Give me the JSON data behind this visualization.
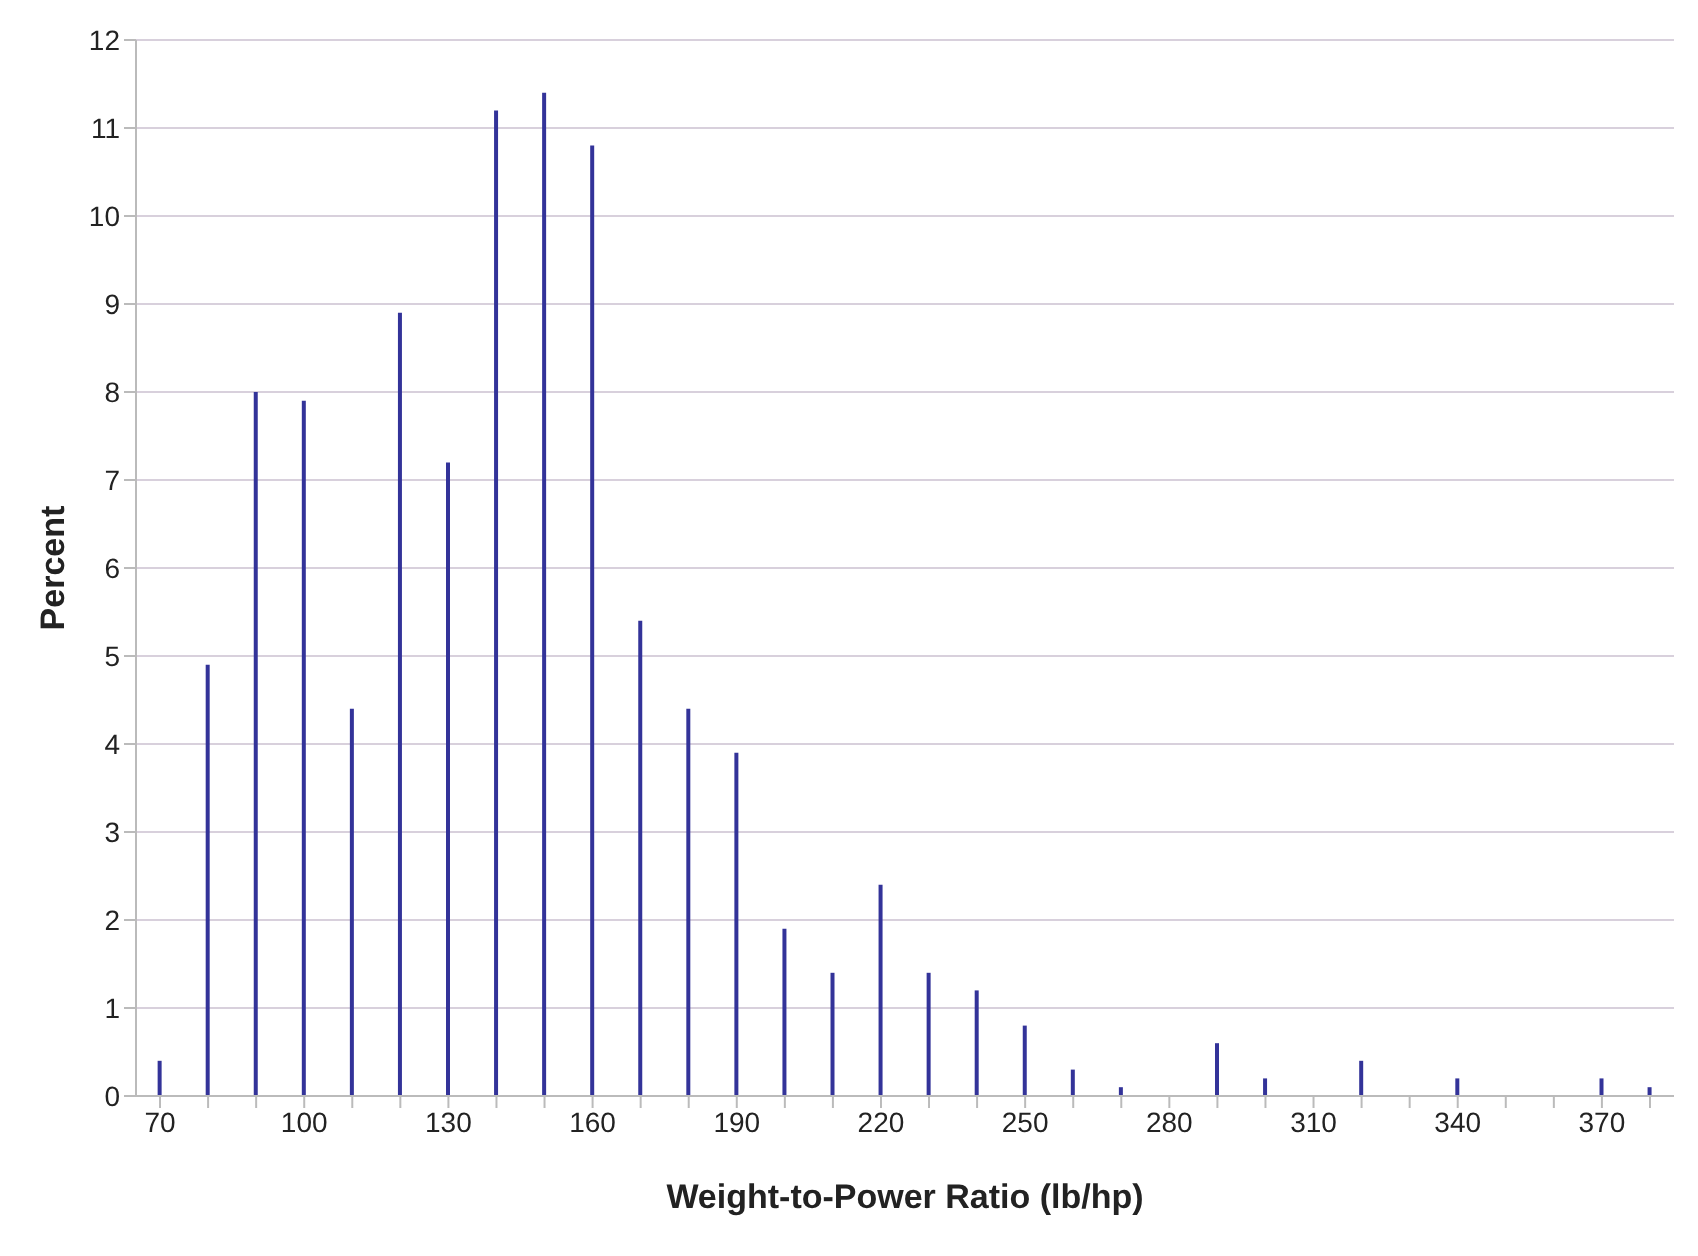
{
  "chart_data": {
    "type": "bar",
    "xlabel": "Weight-to-Power Ratio (lb/hp)",
    "ylabel": "Percent",
    "categories": [
      "70",
      null,
      null,
      "100",
      null,
      null,
      "130",
      null,
      null,
      "160",
      null,
      null,
      "190",
      null,
      null,
      "220",
      null,
      null,
      "250",
      null,
      null,
      "280",
      null,
      null,
      "310",
      null,
      null,
      "340",
      null,
      null,
      "370",
      null
    ],
    "values": [
      0.4,
      4.9,
      8.0,
      7.9,
      4.4,
      8.9,
      7.2,
      11.2,
      11.4,
      10.8,
      5.4,
      4.4,
      3.9,
      1.9,
      1.4,
      2.4,
      1.4,
      1.2,
      0.8,
      0.3,
      0.1,
      0,
      0.6,
      0.2,
      0,
      0.4,
      0,
      0.2,
      0,
      0,
      0.2,
      0.1
    ],
    "color": "#333399",
    "ylim": [
      0,
      12
    ],
    "yticks": [
      0,
      1,
      2,
      3,
      4,
      5,
      6,
      7,
      8,
      9,
      10,
      11,
      12
    ],
    "grid": "y"
  }
}
